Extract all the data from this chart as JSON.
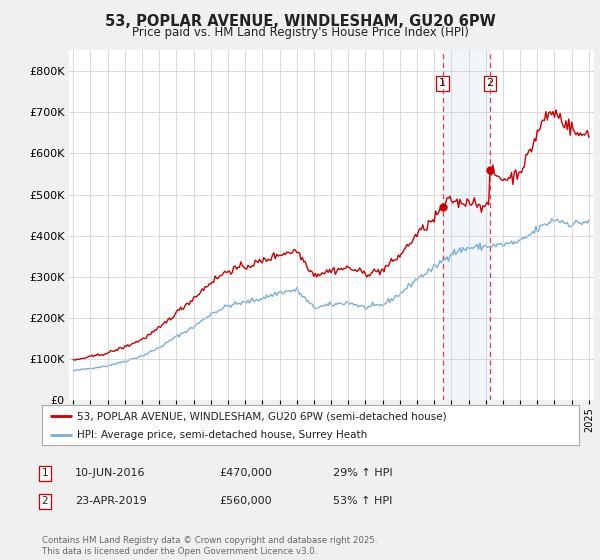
{
  "title": "53, POPLAR AVENUE, WINDLESHAM, GU20 6PW",
  "subtitle": "Price paid vs. HM Land Registry's House Price Index (HPI)",
  "legend_line1": "53, POPLAR AVENUE, WINDLESHAM, GU20 6PW (semi-detached house)",
  "legend_line2": "HPI: Average price, semi-detached house, Surrey Heath",
  "transaction1_date": "10-JUN-2016",
  "transaction1_price": "£470,000",
  "transaction1_hpi": "29% ↑ HPI",
  "transaction2_date": "23-APR-2019",
  "transaction2_price": "£560,000",
  "transaction2_hpi": "53% ↑ HPI",
  "copyright": "Contains HM Land Registry data © Crown copyright and database right 2025.\nThis data is licensed under the Open Government Licence v3.0.",
  "ylim": [
    0,
    850000
  ],
  "bg_color": "#f0f0f0",
  "plot_bg_color": "#ffffff",
  "line1_color": "#cc0000",
  "line2_color": "#7bafd4",
  "marker1_price": 470000,
  "marker2_price": 560000,
  "vline_color": "#dd4444",
  "span_color": "#ddeeff",
  "grid_color": "#cccccc"
}
